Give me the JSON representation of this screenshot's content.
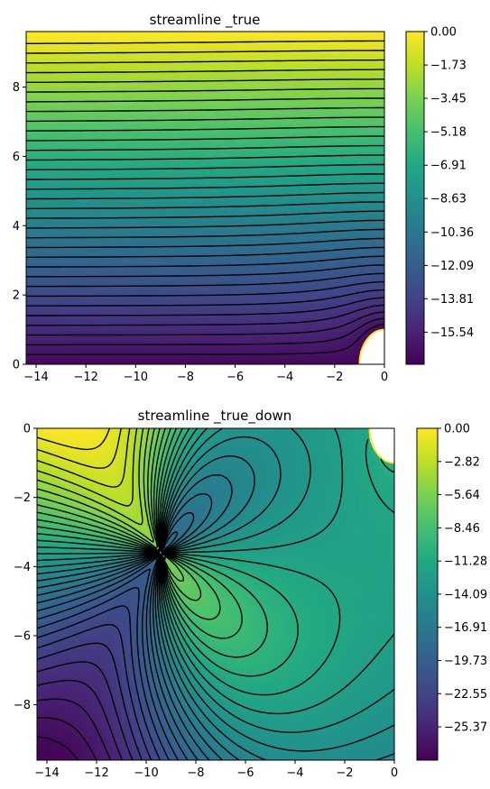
{
  "chart_data": [
    {
      "type": "heatmap",
      "title": "streamline _true",
      "xlabel": "",
      "ylabel": "",
      "xlim": [
        -14.4,
        0
      ],
      "ylim": [
        0,
        9.6
      ],
      "x_ticks": [
        -14,
        -12,
        -10,
        -8,
        -6,
        -4,
        -2,
        0
      ],
      "y_ticks": [
        0,
        2,
        4,
        6,
        8
      ],
      "colormap": "viridis",
      "overlay": "dashed black streamline contours",
      "colorbar": {
        "range": [
          -17.2,
          0
        ],
        "ticks": [
          0.0,
          -1.73,
          -3.45,
          -5.18,
          -6.91,
          -8.63,
          -10.36,
          -12.09,
          -13.81,
          -15.54
        ],
        "tick_labels": [
          "0.00",
          "−1.73",
          "−3.45",
          "−5.18",
          "−6.91",
          "−8.63",
          "−10.36",
          "−12.09",
          "−13.81",
          "−15.54"
        ]
      },
      "cylinder": {
        "center": [
          0,
          0
        ],
        "radius": 1
      }
    },
    {
      "type": "heatmap",
      "title": "streamline _true_down",
      "xlabel": "",
      "ylabel": "",
      "xlim": [
        -14.4,
        0
      ],
      "ylim": [
        -9.6,
        0
      ],
      "x_ticks": [
        -14,
        -12,
        -10,
        -8,
        -6,
        -4,
        -2,
        0
      ],
      "y_ticks": [
        0,
        -2,
        -4,
        -6,
        -8
      ],
      "colormap": "viridis",
      "overlay": "dashed black streamline contours",
      "colorbar": {
        "range": [
          -28.2,
          0
        ],
        "ticks": [
          0.0,
          -2.82,
          -5.64,
          -8.46,
          -11.28,
          -14.09,
          -16.91,
          -19.73,
          -22.55,
          -25.37
        ],
        "tick_labels": [
          "0.00",
          "−2.82",
          "−5.64",
          "−8.46",
          "−11.28",
          "−14.09",
          "−16.91",
          "−19.73",
          "−22.55",
          "−25.37"
        ]
      },
      "cylinder": {
        "center": [
          0,
          0
        ],
        "radius": 1
      }
    }
  ]
}
